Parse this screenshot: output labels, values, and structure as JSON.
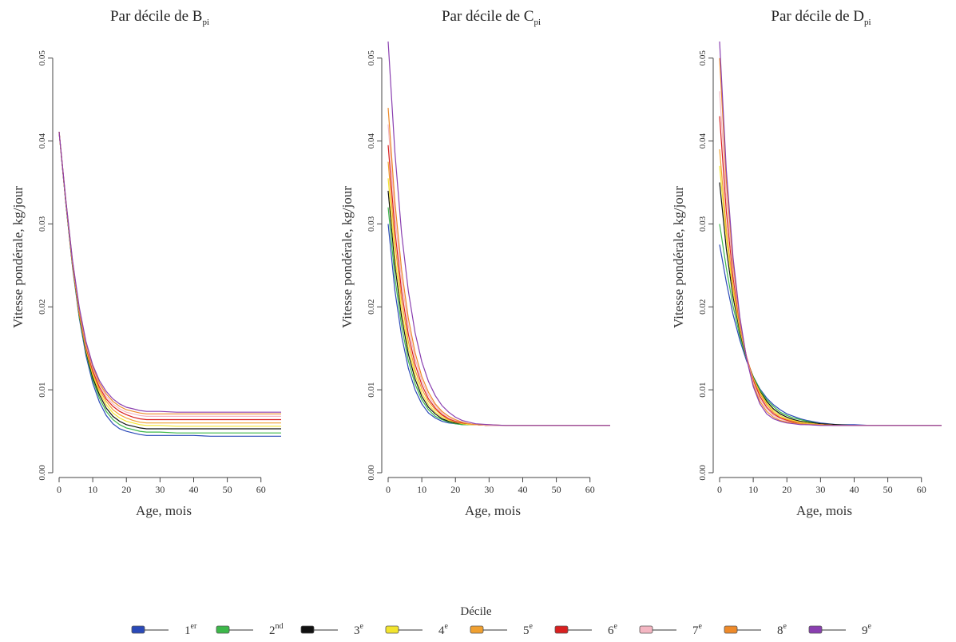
{
  "legend": {
    "title": "Décile",
    "items": [
      {
        "label": "1",
        "sup": "er",
        "color": "#2a49b8"
      },
      {
        "label": "2",
        "sup": "nd",
        "color": "#3db84a"
      },
      {
        "label": "3",
        "sup": "e",
        "color": "#111111"
      },
      {
        "label": "4",
        "sup": "e",
        "color": "#f2e42e"
      },
      {
        "label": "5",
        "sup": "e",
        "color": "#f0a030"
      },
      {
        "label": "6",
        "sup": "e",
        "color": "#d92020"
      },
      {
        "label": "7",
        "sup": "e",
        "color": "#f4b6c2"
      },
      {
        "label": "8",
        "sup": "e",
        "color": "#ee8a2a"
      },
      {
        "label": "9",
        "sup": "e",
        "color": "#8a3fb0"
      }
    ]
  },
  "chart_data": [
    {
      "type": "line",
      "title": "Par décile de B",
      "title_sub": "pi",
      "xlabel": "Age, mois",
      "ylabel": "Vitesse pondérale, kg/jour",
      "xlim": [
        0,
        66
      ],
      "ylim": [
        0,
        0.052
      ],
      "xticks": [
        "0",
        "10",
        "20",
        "30",
        "40",
        "50",
        "60"
      ],
      "yticks": [
        "0.00",
        "0.01",
        "0.02",
        "0.03",
        "0.04",
        "0.05"
      ],
      "x": [
        0,
        2,
        4,
        6,
        8,
        10,
        12,
        14,
        16,
        18,
        20,
        22,
        24,
        26,
        30,
        35,
        40,
        45,
        50,
        55,
        60,
        66
      ],
      "series": [
        {
          "values": [
            0.0411,
            0.0325,
            0.0248,
            0.0186,
            0.0141,
            0.0108,
            0.0085,
            0.0069,
            0.0059,
            0.0053,
            0.005,
            0.0048,
            0.0046,
            0.0045,
            0.0045,
            0.0045,
            0.0045,
            0.0044,
            0.0044,
            0.0044,
            0.0044,
            0.0044
          ]
        },
        {
          "values": [
            0.0411,
            0.0326,
            0.0249,
            0.0188,
            0.0144,
            0.0112,
            0.009,
            0.0074,
            0.0064,
            0.0058,
            0.0054,
            0.0052,
            0.005,
            0.0049,
            0.0049,
            0.0048,
            0.0048,
            0.0048,
            0.0048,
            0.0048,
            0.0048,
            0.0048
          ]
        },
        {
          "values": [
            0.0411,
            0.0326,
            0.025,
            0.019,
            0.0146,
            0.0115,
            0.0094,
            0.0078,
            0.0068,
            0.0062,
            0.0058,
            0.0056,
            0.0054,
            0.0053,
            0.0053,
            0.0053,
            0.0053,
            0.0053,
            0.0053,
            0.0053,
            0.0053,
            0.0053
          ]
        },
        {
          "values": [
            0.0411,
            0.0327,
            0.0251,
            0.0191,
            0.0148,
            0.0118,
            0.0097,
            0.0082,
            0.0072,
            0.0066,
            0.0062,
            0.006,
            0.0058,
            0.0057,
            0.0057,
            0.0056,
            0.0056,
            0.0056,
            0.0056,
            0.0056,
            0.0056,
            0.0056
          ]
        },
        {
          "values": [
            0.0411,
            0.0327,
            0.0252,
            0.0193,
            0.015,
            0.0121,
            0.01,
            0.0086,
            0.0076,
            0.007,
            0.0066,
            0.0063,
            0.0061,
            0.006,
            0.006,
            0.006,
            0.006,
            0.006,
            0.006,
            0.006,
            0.006,
            0.006
          ]
        },
        {
          "values": [
            0.0411,
            0.0328,
            0.0253,
            0.0194,
            0.0152,
            0.0123,
            0.0103,
            0.0089,
            0.008,
            0.0074,
            0.007,
            0.0067,
            0.0065,
            0.0064,
            0.0064,
            0.0064,
            0.0064,
            0.0064,
            0.0064,
            0.0064,
            0.0064,
            0.0064
          ]
        },
        {
          "values": [
            0.0411,
            0.0328,
            0.0254,
            0.0196,
            0.0154,
            0.0126,
            0.0106,
            0.0092,
            0.0083,
            0.0077,
            0.0073,
            0.0071,
            0.0069,
            0.0068,
            0.0068,
            0.0068,
            0.0068,
            0.0068,
            0.0068,
            0.0068,
            0.0068,
            0.0068
          ]
        },
        {
          "values": [
            0.0411,
            0.0329,
            0.0255,
            0.0197,
            0.0156,
            0.0128,
            0.0108,
            0.0095,
            0.0086,
            0.008,
            0.0076,
            0.0074,
            0.0072,
            0.0071,
            0.0071,
            0.0071,
            0.0071,
            0.0071,
            0.0071,
            0.0071,
            0.0071,
            0.0071
          ]
        },
        {
          "values": [
            0.0411,
            0.0329,
            0.0256,
            0.0199,
            0.0158,
            0.013,
            0.0111,
            0.0098,
            0.0089,
            0.0083,
            0.0079,
            0.0077,
            0.0075,
            0.0074,
            0.0074,
            0.0073,
            0.0073,
            0.0073,
            0.0073,
            0.0073,
            0.0073,
            0.0073
          ]
        }
      ]
    },
    {
      "type": "line",
      "title": "Par décile de C",
      "title_sub": "pi",
      "xlabel": "Age, mois",
      "ylabel": "Vitesse pondérale, kg/jour",
      "xlim": [
        0,
        66
      ],
      "ylim": [
        0,
        0.052
      ],
      "xticks": [
        "0",
        "10",
        "20",
        "30",
        "40",
        "50",
        "60"
      ],
      "yticks": [
        "0.00",
        "0.01",
        "0.02",
        "0.03",
        "0.04",
        "0.05"
      ],
      "x": [
        0,
        2,
        4,
        6,
        8,
        10,
        12,
        14,
        16,
        18,
        20,
        22,
        24,
        26,
        30,
        35,
        40,
        45,
        50,
        55,
        60,
        66
      ],
      "series": [
        {
          "values": [
            0.03,
            0.022,
            0.0165,
            0.0126,
            0.01,
            0.0083,
            0.0072,
            0.0066,
            0.0062,
            0.006,
            0.0059,
            0.0058,
            0.0058,
            0.0058,
            0.0057,
            0.0057,
            0.0057,
            0.0057,
            0.0057,
            0.0057,
            0.0057,
            0.0057
          ]
        },
        {
          "values": [
            0.032,
            0.0236,
            0.0177,
            0.0135,
            0.0107,
            0.0088,
            0.0076,
            0.0068,
            0.0064,
            0.0061,
            0.0059,
            0.0058,
            0.0058,
            0.0058,
            0.0057,
            0.0057,
            0.0057,
            0.0057,
            0.0057,
            0.0057,
            0.0057,
            0.0057
          ]
        },
        {
          "values": [
            0.034,
            0.0251,
            0.0188,
            0.0143,
            0.0113,
            0.0092,
            0.0079,
            0.0071,
            0.0065,
            0.0062,
            0.006,
            0.0059,
            0.0058,
            0.0058,
            0.0057,
            0.0057,
            0.0057,
            0.0057,
            0.0057,
            0.0057,
            0.0057,
            0.0057
          ]
        },
        {
          "values": [
            0.0355,
            0.0262,
            0.0196,
            0.015,
            0.0118,
            0.0096,
            0.0082,
            0.0073,
            0.0067,
            0.0063,
            0.0061,
            0.0059,
            0.0058,
            0.0058,
            0.0057,
            0.0057,
            0.0057,
            0.0057,
            0.0057,
            0.0057,
            0.0057,
            0.0057
          ]
        },
        {
          "values": [
            0.0375,
            0.0278,
            0.0208,
            0.0158,
            0.0124,
            0.0101,
            0.0086,
            0.0076,
            0.0069,
            0.0064,
            0.0061,
            0.006,
            0.0059,
            0.0058,
            0.0057,
            0.0057,
            0.0057,
            0.0057,
            0.0057,
            0.0057,
            0.0057,
            0.0057
          ]
        },
        {
          "values": [
            0.0395,
            0.0293,
            0.0219,
            0.0167,
            0.0131,
            0.0106,
            0.0089,
            0.0078,
            0.007,
            0.0065,
            0.0062,
            0.006,
            0.0059,
            0.0058,
            0.0057,
            0.0057,
            0.0057,
            0.0057,
            0.0057,
            0.0057,
            0.0057,
            0.0057
          ]
        },
        {
          "values": [
            0.042,
            0.0312,
            0.0233,
            0.0177,
            0.0138,
            0.0111,
            0.0093,
            0.0081,
            0.0072,
            0.0066,
            0.0063,
            0.0061,
            0.0059,
            0.0058,
            0.0057,
            0.0057,
            0.0057,
            0.0057,
            0.0057,
            0.0057,
            0.0057,
            0.0057
          ]
        },
        {
          "values": [
            0.044,
            0.0327,
            0.0245,
            0.0186,
            0.0145,
            0.0116,
            0.0097,
            0.0083,
            0.0074,
            0.0068,
            0.0064,
            0.0061,
            0.0059,
            0.0058,
            0.0058,
            0.0057,
            0.0057,
            0.0057,
            0.0057,
            0.0057,
            0.0057,
            0.0057
          ]
        },
        {
          "values": [
            0.052,
            0.0387,
            0.0289,
            0.0219,
            0.0169,
            0.0134,
            0.011,
            0.0093,
            0.0081,
            0.0073,
            0.0067,
            0.0063,
            0.0061,
            0.0059,
            0.0058,
            0.0057,
            0.0057,
            0.0057,
            0.0057,
            0.0057,
            0.0057,
            0.0057
          ]
        }
      ]
    },
    {
      "type": "line",
      "title": "Par décile de D",
      "title_sub": "pi",
      "xlabel": "Age, mois",
      "ylabel": "Vitesse pondérale, kg/jour",
      "xlim": [
        0,
        66
      ],
      "ylim": [
        0,
        0.052
      ],
      "xticks": [
        "0",
        "10",
        "20",
        "30",
        "40",
        "50",
        "60"
      ],
      "yticks": [
        "0.00",
        "0.01",
        "0.02",
        "0.03",
        "0.04",
        "0.05"
      ],
      "x": [
        0,
        2,
        4,
        6,
        8,
        10,
        12,
        14,
        16,
        18,
        20,
        22,
        24,
        26,
        30,
        35,
        40,
        45,
        50,
        55,
        60,
        66
      ],
      "series": [
        {
          "values": [
            0.0275,
            0.023,
            0.0191,
            0.016,
            0.0135,
            0.0116,
            0.0101,
            0.009,
            0.0082,
            0.0076,
            0.0071,
            0.0068,
            0.0065,
            0.0063,
            0.006,
            0.0058,
            0.0058,
            0.0057,
            0.0057,
            0.0057,
            0.0057,
            0.0057
          ]
        },
        {
          "values": [
            0.03,
            0.0247,
            0.0201,
            0.0165,
            0.0137,
            0.0116,
            0.01,
            0.0088,
            0.008,
            0.0073,
            0.0069,
            0.0066,
            0.0064,
            0.0062,
            0.0059,
            0.0058,
            0.0057,
            0.0057,
            0.0057,
            0.0057,
            0.0057,
            0.0057
          ]
        },
        {
          "values": [
            0.035,
            0.027,
            0.0212,
            0.017,
            0.0138,
            0.0115,
            0.0098,
            0.0086,
            0.0077,
            0.0071,
            0.0067,
            0.0064,
            0.0062,
            0.0061,
            0.0059,
            0.0058,
            0.0057,
            0.0057,
            0.0057,
            0.0057,
            0.0057,
            0.0057
          ]
        },
        {
          "values": [
            0.037,
            0.0283,
            0.0219,
            0.0173,
            0.0139,
            0.0114,
            0.0097,
            0.0084,
            0.0075,
            0.0069,
            0.0065,
            0.0063,
            0.0061,
            0.006,
            0.0058,
            0.0057,
            0.0057,
            0.0057,
            0.0057,
            0.0057,
            0.0057,
            0.0057
          ]
        },
        {
          "values": [
            0.039,
            0.0294,
            0.0226,
            0.0176,
            0.014,
            0.0113,
            0.0095,
            0.0082,
            0.0073,
            0.0067,
            0.0064,
            0.0062,
            0.006,
            0.0059,
            0.0058,
            0.0057,
            0.0057,
            0.0057,
            0.0057,
            0.0057,
            0.0057,
            0.0057
          ]
        },
        {
          "values": [
            0.043,
            0.0315,
            0.0236,
            0.018,
            0.014,
            0.0111,
            0.0092,
            0.0079,
            0.0071,
            0.0066,
            0.0063,
            0.0061,
            0.0059,
            0.0058,
            0.0058,
            0.0057,
            0.0057,
            0.0057,
            0.0057,
            0.0057,
            0.0057,
            0.0057
          ]
        },
        {
          "values": [
            0.046,
            0.0332,
            0.0244,
            0.0182,
            0.0139,
            0.0109,
            0.0089,
            0.0077,
            0.0069,
            0.0065,
            0.0062,
            0.006,
            0.0059,
            0.0058,
            0.0058,
            0.0057,
            0.0057,
            0.0057,
            0.0057,
            0.0057,
            0.0057,
            0.0057
          ]
        },
        {
          "values": [
            0.05,
            0.0352,
            0.0254,
            0.0185,
            0.0138,
            0.0106,
            0.0086,
            0.0074,
            0.0067,
            0.0063,
            0.0061,
            0.006,
            0.0059,
            0.0058,
            0.0058,
            0.0057,
            0.0057,
            0.0057,
            0.0057,
            0.0057,
            0.0057,
            0.0057
          ]
        },
        {
          "values": [
            0.052,
            0.0365,
            0.026,
            0.0188,
            0.0138,
            0.0104,
            0.0083,
            0.0071,
            0.0065,
            0.0062,
            0.006,
            0.0059,
            0.0058,
            0.0058,
            0.0057,
            0.0057,
            0.0057,
            0.0057,
            0.0057,
            0.0057,
            0.0057,
            0.0057
          ]
        }
      ]
    }
  ]
}
